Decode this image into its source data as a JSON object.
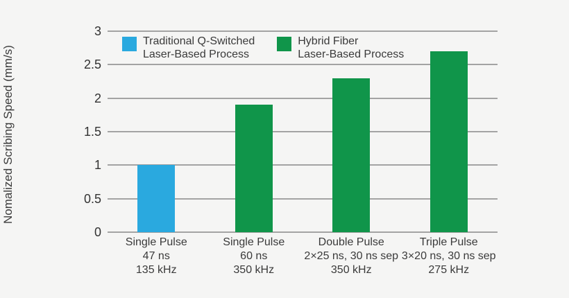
{
  "background_color": "#f5f5f4",
  "text_color": "#3a3a3a",
  "gridline_color": "#a3a3a3",
  "chart_data": {
    "type": "bar",
    "title": "",
    "xlabel": "",
    "ylabel": "Nomalized Scribing Speed (mm/s)",
    "ylim": [
      0,
      3
    ],
    "yticks": [
      "0",
      "0.5",
      "1",
      "1.5",
      "2",
      "2.5",
      "3"
    ],
    "grid": "horizontal",
    "legend_position": "top-left-inside",
    "categories": [
      [
        "Single Pulse",
        "47 ns",
        "135 kHz"
      ],
      [
        "Single Pulse",
        "60 ns",
        "350 kHz"
      ],
      [
        "Double Pulse",
        "2×25 ns, 30 ns sep",
        "350 kHz"
      ],
      [
        "Triple Pulse",
        "3×20 ns, 30 ns sep",
        "275 kHz"
      ]
    ],
    "values": [
      1.0,
      1.9,
      2.3,
      2.7
    ],
    "bar_colors": [
      "#2AA9DF",
      "#10954A",
      "#10954A",
      "#10954A"
    ],
    "legend": [
      {
        "label": "Traditional Q-Switched\nLaser-Based Process",
        "color": "#2AA9DF"
      },
      {
        "label": "Hybrid Fiber\nLaser-Based Process",
        "color": "#10954A"
      }
    ]
  }
}
